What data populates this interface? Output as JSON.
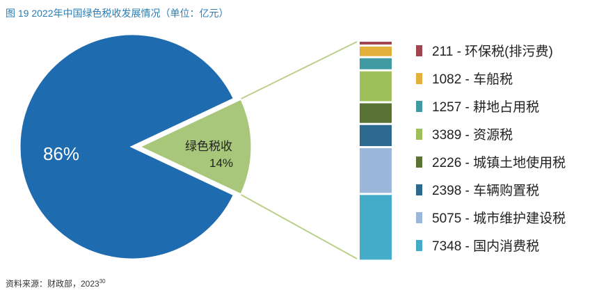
{
  "title": "图 19 2022年中国绿色税收发展情况（单位：亿元）",
  "source": "资料来源：财政部，2023",
  "source_ref": "30",
  "chart_data": {
    "type": "bar-of-pie",
    "pie": {
      "slices": [
        {
          "label": "",
          "value_label": "86%",
          "value": 86,
          "color": "#1f6bb0"
        },
        {
          "label": "绿色税收",
          "value_label": "14%",
          "value": 14,
          "color": "#a8c77a"
        }
      ]
    },
    "stack": {
      "unit": "亿元",
      "items": [
        {
          "name": "环保税(排污费)",
          "value": 211,
          "color": "#a0454f"
        },
        {
          "name": "车船税",
          "value": 1082,
          "color": "#e4b03c"
        },
        {
          "name": "耕地占用税",
          "value": 1257,
          "color": "#3f9aa1"
        },
        {
          "name": "资源税",
          "value": 3389,
          "color": "#9fbf5b"
        },
        {
          "name": "城镇土地使用税",
          "value": 2226,
          "color": "#5a7233"
        },
        {
          "name": "车辆购置税",
          "value": 2398,
          "color": "#2d6a8f"
        },
        {
          "name": "城市维护建设税",
          "value": 5075,
          "color": "#9bb7da"
        },
        {
          "name": "国内消费税",
          "value": 7348,
          "color": "#44acc8"
        }
      ]
    }
  }
}
